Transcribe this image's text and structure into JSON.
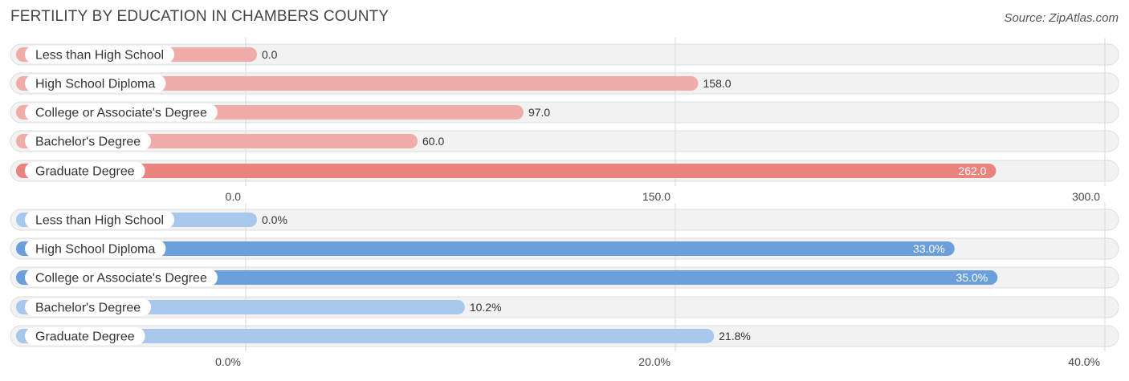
{
  "header": {
    "title": "FERTILITY BY EDUCATION IN CHAMBERS COUNTY",
    "source": "Source: ZipAtlas.com"
  },
  "chart_data": [
    {
      "type": "bar",
      "orientation": "horizontal",
      "categories": [
        "Less than High School",
        "High School Diploma",
        "College or Associate's Degree",
        "Bachelor's Degree",
        "Graduate Degree"
      ],
      "values": [
        0.0,
        158.0,
        97.0,
        60.0,
        262.0
      ],
      "value_labels": [
        "0.0",
        "158.0",
        "97.0",
        "60.0",
        "262.0"
      ],
      "xlim": [
        0,
        300
      ],
      "ticks": [
        0,
        150,
        300
      ],
      "tick_labels": [
        "0.0",
        "150.0",
        "300.0"
      ],
      "colors": {
        "bar": "#e8837e",
        "bar_light": "#f0aca8",
        "inside_text": "#ffffff",
        "outside_text": "#333333"
      },
      "grid": true
    },
    {
      "type": "bar",
      "orientation": "horizontal",
      "categories": [
        "Less than High School",
        "High School Diploma",
        "College or Associate's Degree",
        "Bachelor's Degree",
        "Graduate Degree"
      ],
      "values": [
        0.0,
        33.0,
        35.0,
        10.2,
        21.8
      ],
      "value_labels": [
        "0.0%",
        "33.0%",
        "35.0%",
        "10.2%",
        "21.8%"
      ],
      "xlim": [
        0,
        40
      ],
      "ticks": [
        0,
        20,
        40
      ],
      "tick_labels": [
        "0.0%",
        "20.0%",
        "40.0%"
      ],
      "colors": {
        "bar": "#6a9fdb",
        "bar_light": "#a8c7ec",
        "inside_text": "#ffffff",
        "outside_text": "#333333"
      },
      "grid": true
    }
  ]
}
